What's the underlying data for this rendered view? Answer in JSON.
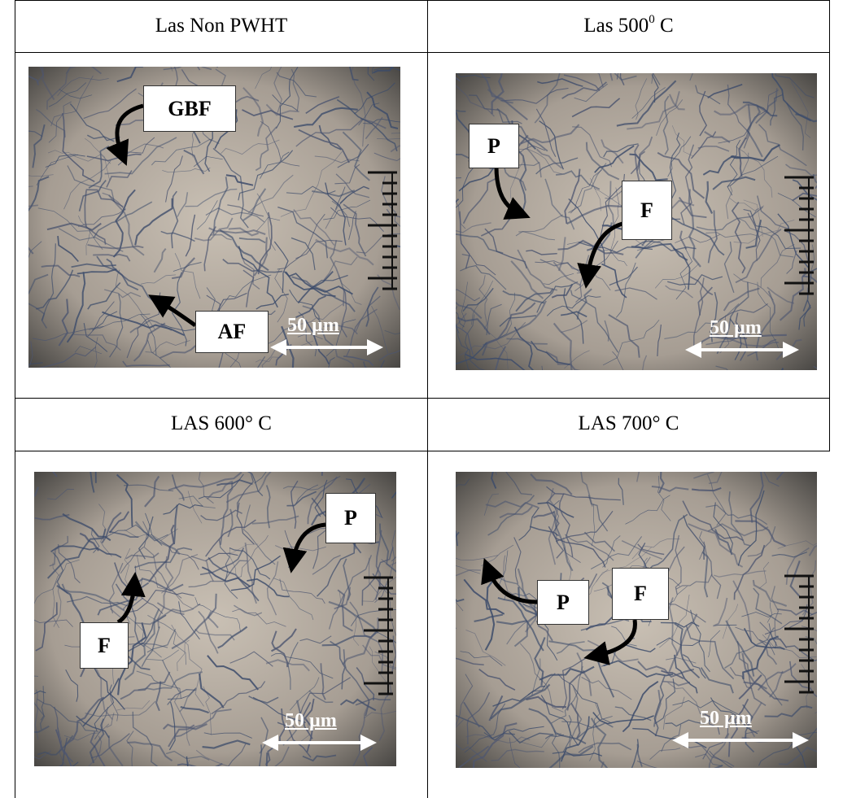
{
  "panels": [
    {
      "title": "Las Non PWHT",
      "labels": [
        "GBF",
        "AF"
      ],
      "scale_bar": "50 µm"
    },
    {
      "title": "Las 500",
      "title_superscript": "0",
      "title_suffix": " C",
      "labels": [
        "P",
        "F"
      ],
      "scale_bar": "50 µm"
    },
    {
      "title": "LAS 600° C",
      "labels": [
        "P",
        "F"
      ],
      "scale_bar": "50 µm"
    },
    {
      "title": "LAS 700° C",
      "labels": [
        "P",
        "F"
      ],
      "scale_bar": "50 µm"
    }
  ]
}
